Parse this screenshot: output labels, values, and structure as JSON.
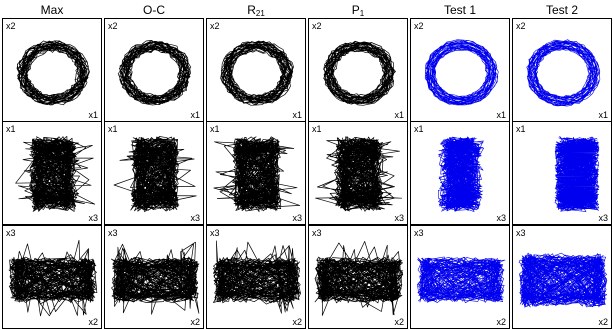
{
  "columns": [
    {
      "title": "Max",
      "sub": "",
      "color": "#000000",
      "style": "chaotic"
    },
    {
      "title": "O-C",
      "sub": "",
      "color": "#000000",
      "style": "chaotic"
    },
    {
      "title": "R",
      "sub": "21",
      "color": "#000000",
      "style": "chaotic"
    },
    {
      "title": "P",
      "sub": "1",
      "color": "#000000",
      "style": "chaotic"
    },
    {
      "title": "Test 1",
      "sub": "",
      "color": "#0000ee",
      "style": "smooth"
    },
    {
      "title": "Test 2",
      "sub": "",
      "color": "#0000ee",
      "style": "dense"
    }
  ],
  "rows": [
    {
      "kind": "ring",
      "top_label": "x2",
      "bottom_label": "x1"
    },
    {
      "kind": "cloud",
      "top_label": "x1",
      "bottom_label": "x3"
    },
    {
      "kind": "band",
      "top_label": "x3",
      "bottom_label": "x2"
    }
  ]
}
